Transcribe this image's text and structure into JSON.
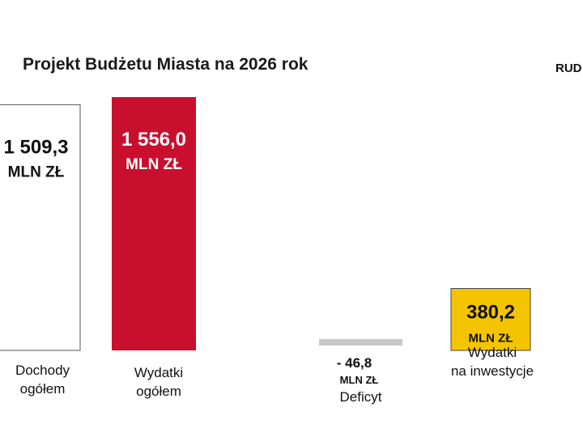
{
  "header": {
    "title": "Projekt Budżetu Miasta na 2026 rok",
    "brand": "RUD"
  },
  "colors": {
    "white_bar": "#ffffff",
    "white_bar_border": "#555555",
    "red_bar": "#c8102e",
    "yellow_bar": "#f5c400",
    "yellow_bar_border": "#444444",
    "deficit_bar": "#c8c8c8",
    "text_dark": "#111111",
    "text_light": "#ffffff"
  },
  "chart_data": {
    "type": "bar",
    "title": "Projekt Budżetu Miasta na 2026 rok",
    "unit": "MLN ZŁ",
    "categories": [
      "Dochody ogółem",
      "Wydatki ogółem",
      "Deficyt",
      "Wydatki na inwestycje"
    ],
    "values": [
      1509.3,
      1556.0,
      -46.8,
      380.2
    ],
    "bars": [
      {
        "label_lines": [
          "Dochody",
          "ogółem"
        ],
        "value": 1509.3,
        "value_text": "1 509,3",
        "unit_text": "MLN ZŁ",
        "style": "white"
      },
      {
        "label_lines": [
          "Wydatki",
          "ogółem"
        ],
        "value": 1556.0,
        "value_text": "1 556,0",
        "unit_text": "MLN ZŁ",
        "style": "red"
      },
      {
        "label_lines": [
          "Deficyt"
        ],
        "value": -46.8,
        "value_text": "- 46,8",
        "unit_text": "MLN ZŁ",
        "style": "deficit"
      },
      {
        "label_lines": [
          "Wydatki",
          "na inwestycje"
        ],
        "value": 380.2,
        "value_text": "380,2",
        "unit_text": "MLN ZŁ",
        "style": "yellow"
      }
    ]
  }
}
